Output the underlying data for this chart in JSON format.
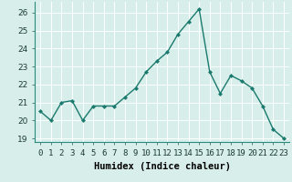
{
  "x": [
    0,
    1,
    2,
    3,
    4,
    5,
    6,
    7,
    8,
    9,
    10,
    11,
    12,
    13,
    14,
    15,
    16,
    17,
    18,
    19,
    20,
    21,
    22,
    23
  ],
  "y": [
    20.5,
    20.0,
    21.0,
    21.1,
    20.0,
    20.8,
    20.8,
    20.8,
    21.3,
    21.8,
    22.7,
    23.3,
    23.8,
    24.8,
    25.5,
    26.2,
    22.7,
    21.5,
    22.5,
    22.2,
    21.8,
    20.8,
    19.5,
    19.0
  ],
  "line_color": "#1a7a6e",
  "marker": "D",
  "marker_size": 2.0,
  "xlabel": "Humidex (Indice chaleur)",
  "xlabel_fontsize": 7.5,
  "ylim": [
    18.8,
    26.6
  ],
  "xlim": [
    -0.5,
    23.5
  ],
  "yticks": [
    19,
    20,
    21,
    22,
    23,
    24,
    25,
    26
  ],
  "xtick_labels": [
    "0",
    "1",
    "2",
    "3",
    "4",
    "5",
    "6",
    "7",
    "8",
    "9",
    "10",
    "11",
    "12",
    "13",
    "14",
    "15",
    "16",
    "17",
    "18",
    "19",
    "20",
    "21",
    "22",
    "23"
  ],
  "bg_color": "#d8eeea",
  "grid_color": "#ffffff",
  "tick_fontsize": 6.5,
  "line_width": 1.0
}
